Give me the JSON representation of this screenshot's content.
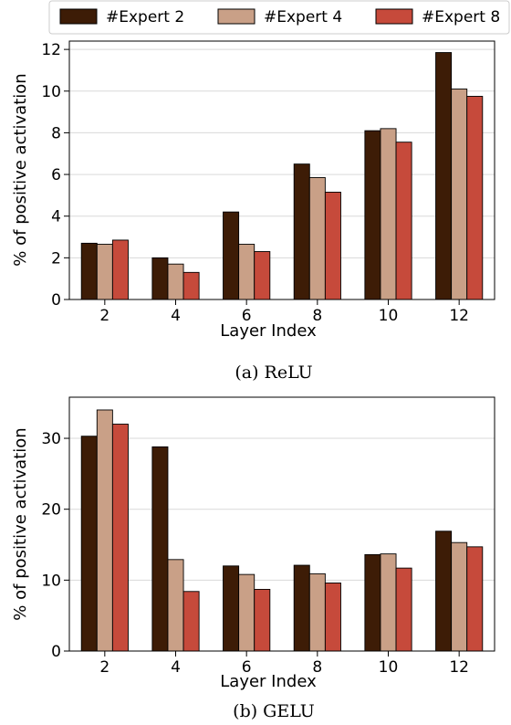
{
  "legend": {
    "entries": [
      "#Expert 2",
      "#Expert 4",
      "#Expert 8"
    ],
    "colors": [
      "#3d1c06",
      "#c9a087",
      "#c64a3b"
    ]
  },
  "chart_data": [
    {
      "type": "bar",
      "caption": "(a) ReLU",
      "xlabel": "Layer Index",
      "ylabel": "% of positive activation",
      "categories": [
        "2",
        "4",
        "6",
        "8",
        "10",
        "12"
      ],
      "ylim": [
        0,
        12.4
      ],
      "yticks": [
        "0",
        "2",
        "4",
        "6",
        "8",
        "10",
        "12"
      ],
      "grid": "horizontal",
      "series": [
        {
          "name": "#Expert 2",
          "values": [
            2.7,
            2.0,
            4.2,
            6.5,
            8.1,
            11.85
          ]
        },
        {
          "name": "#Expert 4",
          "values": [
            2.65,
            1.7,
            2.65,
            5.85,
            8.2,
            10.1
          ]
        },
        {
          "name": "#Expert 8",
          "values": [
            2.85,
            1.3,
            2.3,
            5.15,
            7.55,
            9.75
          ]
        }
      ]
    },
    {
      "type": "bar",
      "caption": "(b) GELU",
      "xlabel": "Layer Index",
      "ylabel": "% of positive activation",
      "categories": [
        "2",
        "4",
        "6",
        "8",
        "10",
        "12"
      ],
      "ylim": [
        0,
        35.8
      ],
      "yticks": [
        "0",
        "10",
        "20",
        "30"
      ],
      "grid": "horizontal",
      "series": [
        {
          "name": "#Expert 2",
          "values": [
            30.3,
            28.8,
            12.0,
            12.1,
            13.6,
            16.9
          ]
        },
        {
          "name": "#Expert 4",
          "values": [
            34.0,
            12.9,
            10.8,
            10.9,
            13.7,
            15.3
          ]
        },
        {
          "name": "#Expert 8",
          "values": [
            32.0,
            8.4,
            8.7,
            9.6,
            11.7,
            14.7
          ]
        }
      ]
    }
  ]
}
